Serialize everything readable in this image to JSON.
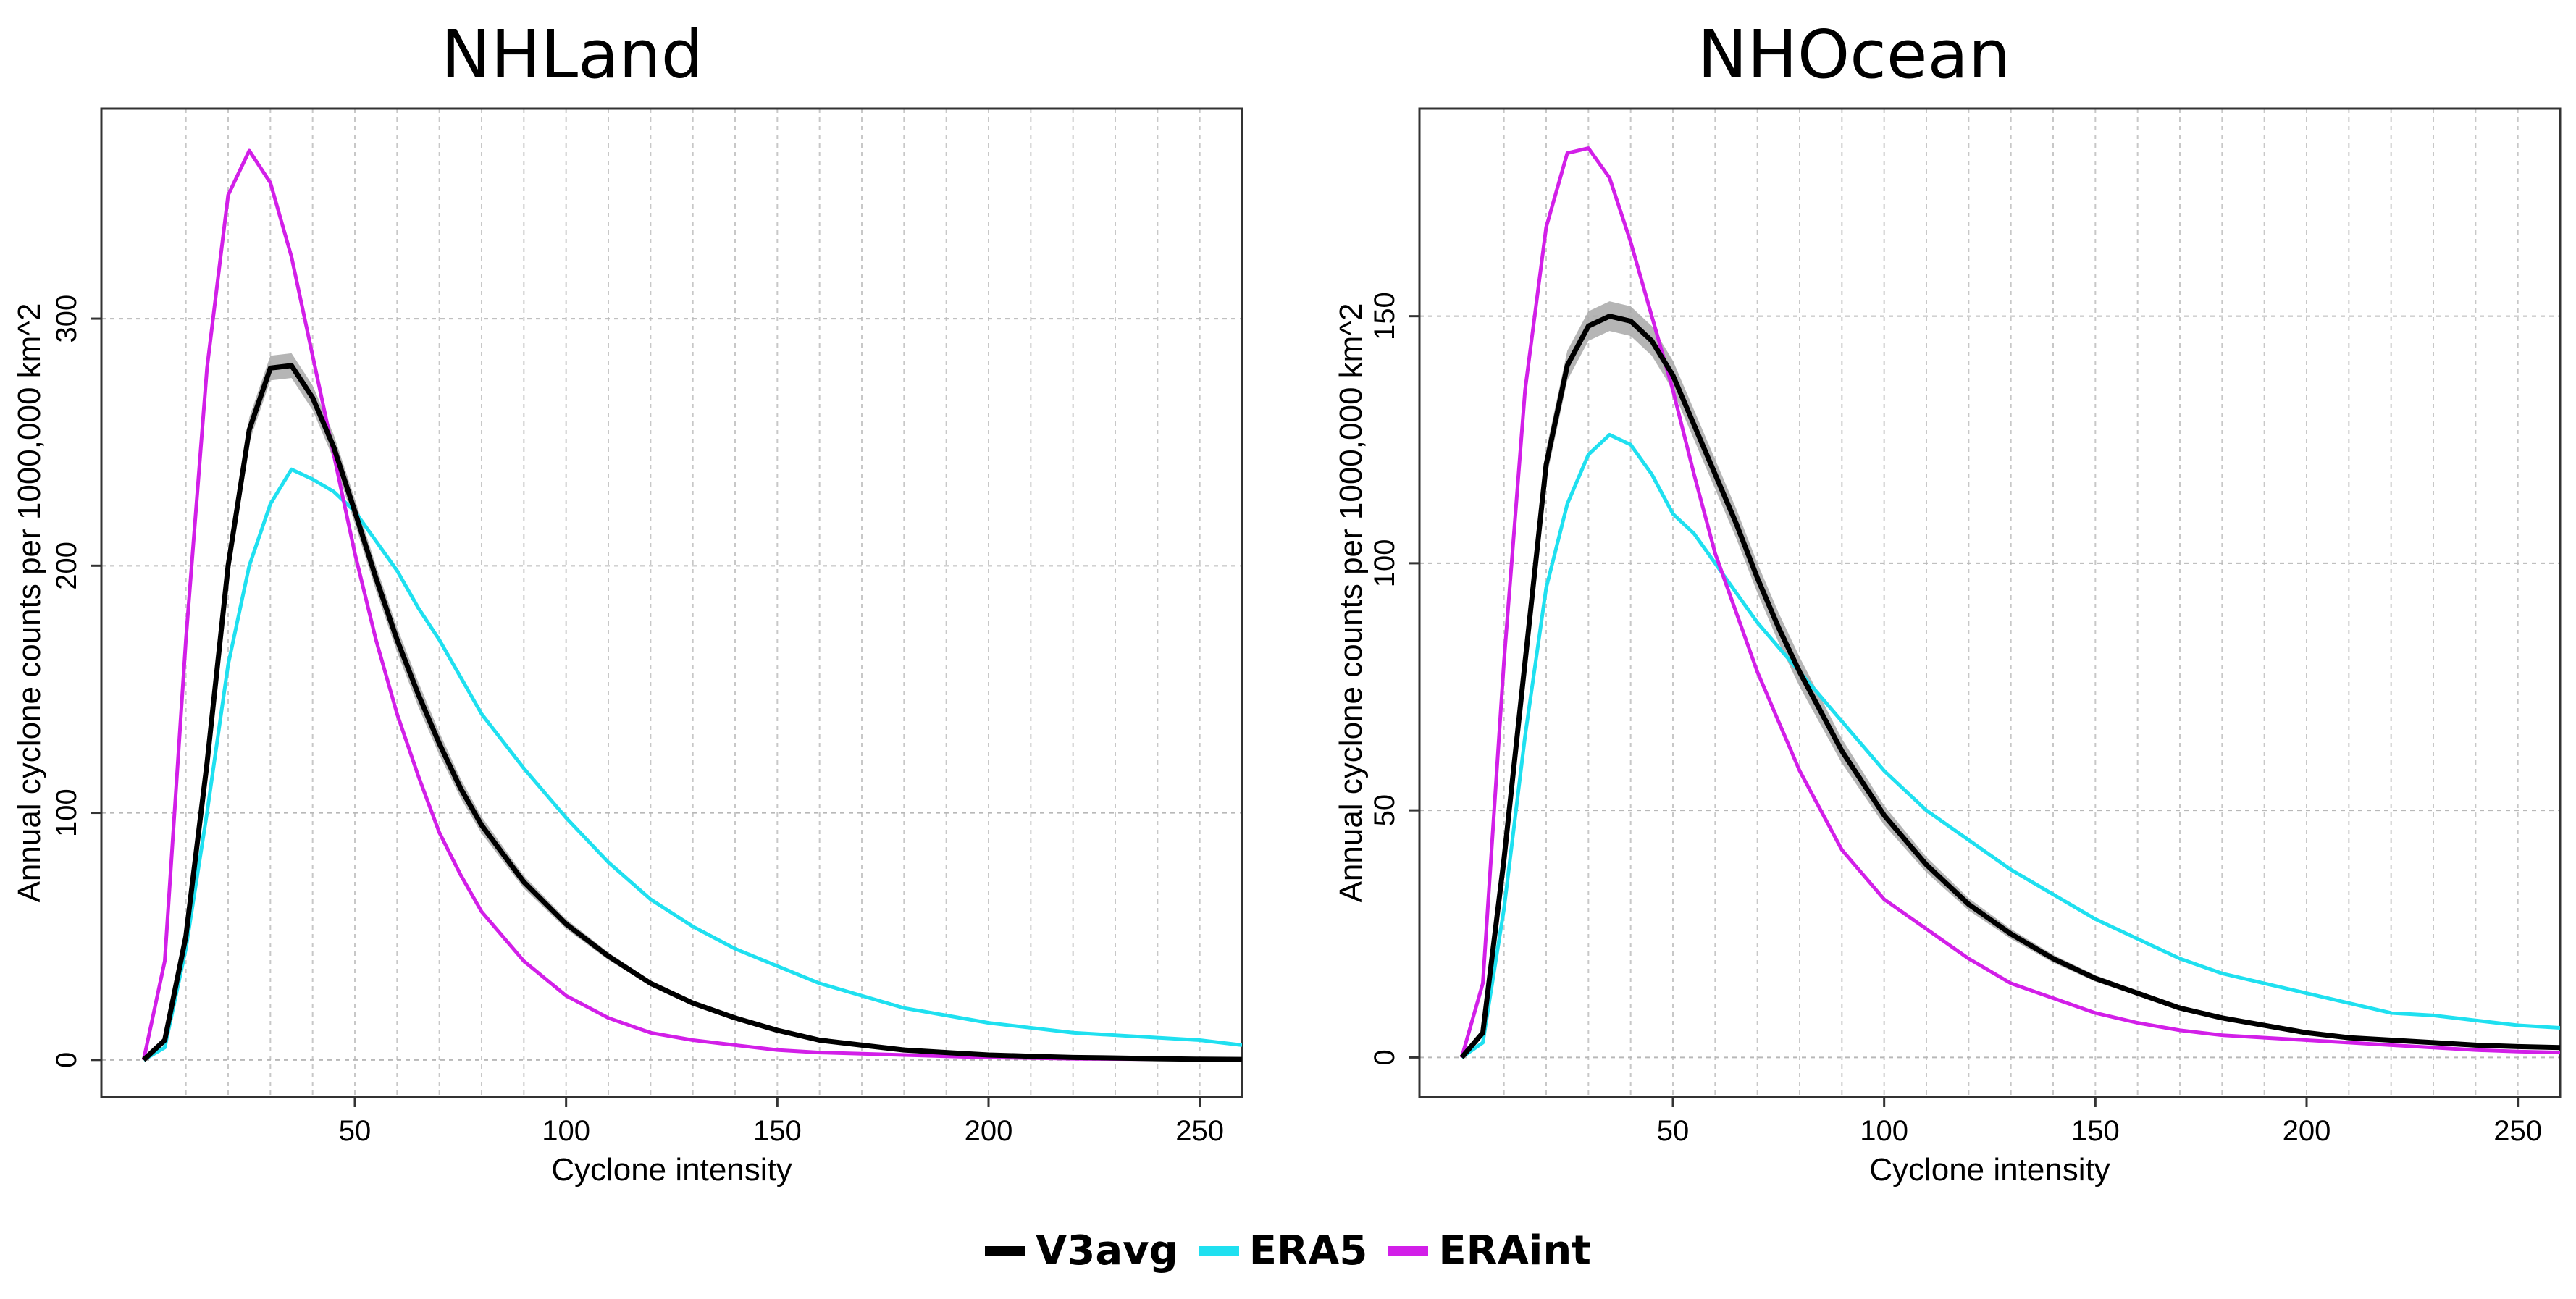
{
  "chart_data": [
    {
      "type": "line",
      "title": "NHLand",
      "xlabel": "Cyclone intensity",
      "ylabel": "Annual cyclone counts per 1000,000 km^2",
      "xlim": [
        -10,
        260
      ],
      "ylim": [
        -15,
        385
      ],
      "xticks": [
        50,
        100,
        150,
        200,
        250
      ],
      "yticks": [
        0,
        100,
        200,
        300
      ],
      "grid": true,
      "x": [
        0,
        5,
        10,
        15,
        20,
        25,
        30,
        35,
        40,
        45,
        50,
        55,
        60,
        65,
        70,
        75,
        80,
        90,
        100,
        110,
        120,
        130,
        140,
        150,
        160,
        170,
        180,
        190,
        200,
        210,
        220,
        230,
        240,
        250,
        260
      ],
      "series": [
        {
          "name": "V3avg",
          "color": "#000000",
          "values": [
            0,
            8,
            50,
            120,
            200,
            255,
            280,
            281,
            268,
            248,
            222,
            195,
            170,
            148,
            128,
            110,
            95,
            72,
            55,
            42,
            31,
            23,
            17,
            12,
            8,
            6,
            4,
            3,
            2,
            1.5,
            1,
            0.8,
            0.5,
            0.3,
            0.2
          ]
        },
        {
          "name": "ERA5",
          "color": "#1fe0f0",
          "values": [
            0,
            5,
            45,
            100,
            160,
            200,
            225,
            239,
            235,
            230,
            222,
            210,
            198,
            183,
            170,
            155,
            140,
            118,
            98,
            80,
            65,
            54,
            45,
            38,
            31,
            26,
            21,
            18,
            15,
            13,
            11,
            10,
            9,
            8,
            6
          ]
        },
        {
          "name": "ERAint",
          "color": "#d21fe8",
          "values": [
            0,
            40,
            170,
            280,
            350,
            368,
            355,
            325,
            285,
            245,
            205,
            170,
            140,
            115,
            92,
            75,
            60,
            40,
            26,
            17,
            11,
            8,
            6,
            4,
            3,
            2.5,
            2,
            1.5,
            1,
            0.8,
            0.5,
            0.4,
            0.3,
            0.2,
            0.1
          ]
        }
      ],
      "band": {
        "series": "V3avg",
        "halfwidth": 5
      }
    },
    {
      "type": "line",
      "title": "NHOcean",
      "xlabel": "Cyclone intensity",
      "ylabel": "Annual cyclone counts per 1000,000 km^2",
      "xlim": [
        -10,
        260
      ],
      "ylim": [
        -8,
        192
      ],
      "xticks": [
        50,
        100,
        150,
        200,
        250
      ],
      "yticks": [
        0,
        50,
        100,
        150
      ],
      "grid": true,
      "x": [
        0,
        5,
        10,
        15,
        20,
        25,
        30,
        35,
        40,
        45,
        50,
        55,
        60,
        65,
        70,
        75,
        80,
        90,
        100,
        110,
        120,
        130,
        140,
        150,
        160,
        170,
        180,
        190,
        200,
        210,
        220,
        230,
        240,
        250,
        260
      ],
      "series": [
        {
          "name": "V3avg",
          "color": "#000000",
          "values": [
            0,
            5,
            40,
            80,
            120,
            140,
            148,
            150,
            149,
            145,
            138,
            128,
            118,
            108,
            97,
            87,
            78,
            62,
            49,
            39,
            31,
            25,
            20,
            16,
            13,
            10,
            8,
            6.5,
            5,
            4,
            3.5,
            3,
            2.5,
            2.2,
            2
          ]
        },
        {
          "name": "ERA5",
          "color": "#1fe0f0",
          "values": [
            0,
            3,
            30,
            65,
            95,
            112,
            122,
            126,
            124,
            118,
            110,
            106,
            100,
            94,
            88,
            83,
            78,
            68,
            58,
            50,
            44,
            38,
            33,
            28,
            24,
            20,
            17,
            15,
            13,
            11,
            9,
            8.5,
            7.5,
            6.5,
            6
          ]
        },
        {
          "name": "ERAint",
          "color": "#d21fe8",
          "values": [
            0,
            15,
            80,
            135,
            168,
            183,
            184,
            178,
            165,
            150,
            135,
            118,
            102,
            90,
            78,
            68,
            58,
            42,
            32,
            26,
            20,
            15,
            12,
            9,
            7,
            5.5,
            4.5,
            4,
            3.5,
            3,
            2.5,
            2,
            1.5,
            1.2,
            1
          ]
        }
      ],
      "band": {
        "series": "V3avg",
        "halfwidth": 3
      }
    }
  ],
  "legend": {
    "items": [
      {
        "label": "V3avg",
        "color": "#000000"
      },
      {
        "label": "ERA5",
        "color": "#1fe0f0"
      },
      {
        "label": "ERAint",
        "color": "#d21fe8"
      }
    ]
  }
}
